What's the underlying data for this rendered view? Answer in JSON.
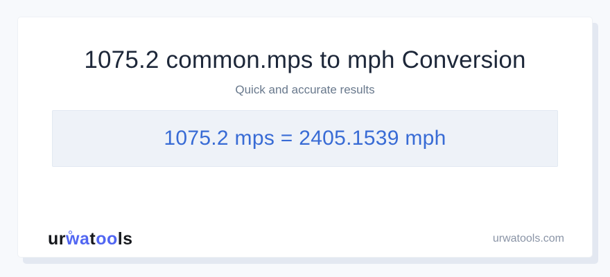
{
  "header": {
    "title": "1075.2 common.mps to mph Conversion",
    "subtitle": "Quick and accurate results"
  },
  "result": {
    "text": "1075.2 mps = 2405.1539 mph",
    "input_value": "1075.2",
    "input_unit": "mps",
    "output_value": "2405.1539",
    "output_unit": "mph"
  },
  "footer": {
    "logo": {
      "part1": "ur",
      "part2": "wa",
      "part3": "t",
      "part4": "oo",
      "part5": "ls"
    },
    "domain": "urwatools.com"
  },
  "colors": {
    "page_background": "#f7f9fc",
    "card_background": "#ffffff",
    "card_shadow": "#e3e8f1",
    "title_text": "#1d2739",
    "subtitle_text": "#68788c",
    "result_box_background": "#eef2f8",
    "result_box_border": "#e2e9f2",
    "result_text": "#386bd5",
    "logo_blue": "#5166f2",
    "logo_dark": "#16181d",
    "domain_text": "#8a94a6"
  }
}
